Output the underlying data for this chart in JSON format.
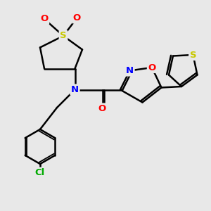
{
  "bg_color": "#e8e8e8",
  "bond_color": "#000000",
  "bond_width": 1.8,
  "atom_colors": {
    "S": "#c8c800",
    "O": "#ff0000",
    "N": "#0000ff",
    "Cl": "#00aa00",
    "C": "#000000"
  },
  "font_size": 9.5
}
